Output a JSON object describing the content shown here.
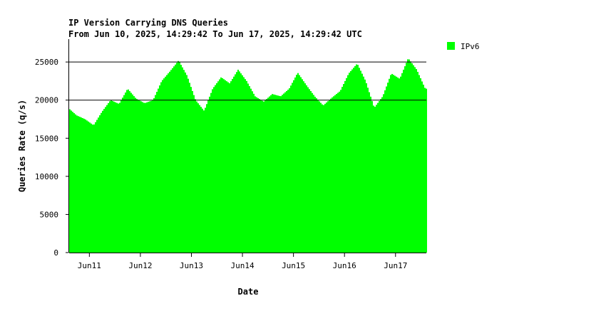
{
  "chart_data": {
    "type": "area",
    "title": "IP Version Carrying DNS Queries",
    "subtitle": "From Jun 10, 2025, 14:29:42 To Jun 17, 2025, 14:29:42 UTC",
    "xlabel": "Date",
    "ylabel": "Queries Rate (q/s)",
    "xlim": [
      "2025-06-10 14:29:42",
      "2025-06-17 14:29:42"
    ],
    "ylim": [
      0,
      28000
    ],
    "yticks": [
      0,
      5000,
      10000,
      15000,
      20000,
      25000
    ],
    "gridlines_at": [
      20000,
      25000
    ],
    "x_tick_labels": [
      "Jun11",
      "Jun12",
      "Jun13",
      "Jun14",
      "Jun15",
      "Jun16",
      "Jun17"
    ],
    "x_tick_dates": [
      "2025-06-11",
      "2025-06-12",
      "2025-06-13",
      "2025-06-14",
      "2025-06-15",
      "2025-06-16",
      "2025-06-17"
    ],
    "legend_position": "top-right",
    "series": [
      {
        "name": "IPv6",
        "color": "#00ff00",
        "x": [
          "2025-06-10 14:00",
          "2025-06-10 18:00",
          "2025-06-10 22:00",
          "2025-06-11 02:00",
          "2025-06-11 06:00",
          "2025-06-11 10:00",
          "2025-06-11 14:00",
          "2025-06-11 18:00",
          "2025-06-11 22:00",
          "2025-06-12 02:00",
          "2025-06-12 06:00",
          "2025-06-12 10:00",
          "2025-06-12 14:00",
          "2025-06-12 18:00",
          "2025-06-12 22:00",
          "2025-06-13 02:00",
          "2025-06-13 06:00",
          "2025-06-13 10:00",
          "2025-06-13 14:00",
          "2025-06-13 18:00",
          "2025-06-13 22:00",
          "2025-06-14 02:00",
          "2025-06-14 06:00",
          "2025-06-14 10:00",
          "2025-06-14 14:00",
          "2025-06-14 18:00",
          "2025-06-14 22:00",
          "2025-06-15 02:00",
          "2025-06-15 06:00",
          "2025-06-15 10:00",
          "2025-06-15 14:00",
          "2025-06-15 18:00",
          "2025-06-15 22:00",
          "2025-06-16 02:00",
          "2025-06-16 06:00",
          "2025-06-16 10:00",
          "2025-06-16 14:00",
          "2025-06-16 18:00",
          "2025-06-16 22:00",
          "2025-06-17 02:00",
          "2025-06-17 06:00",
          "2025-06-17 10:00",
          "2025-06-17 14:00"
        ],
        "values": [
          19000,
          18000,
          17500,
          16700,
          18500,
          20000,
          19500,
          21500,
          20200,
          19600,
          20000,
          22500,
          23800,
          25200,
          23200,
          20000,
          18600,
          21500,
          23000,
          22200,
          24000,
          22500,
          20500,
          19800,
          20800,
          20500,
          21500,
          23600,
          22000,
          20500,
          19300,
          20300,
          21200,
          23500,
          24800,
          22500,
          19000,
          20500,
          23500,
          22800,
          25500,
          24000,
          21500
        ]
      }
    ]
  }
}
